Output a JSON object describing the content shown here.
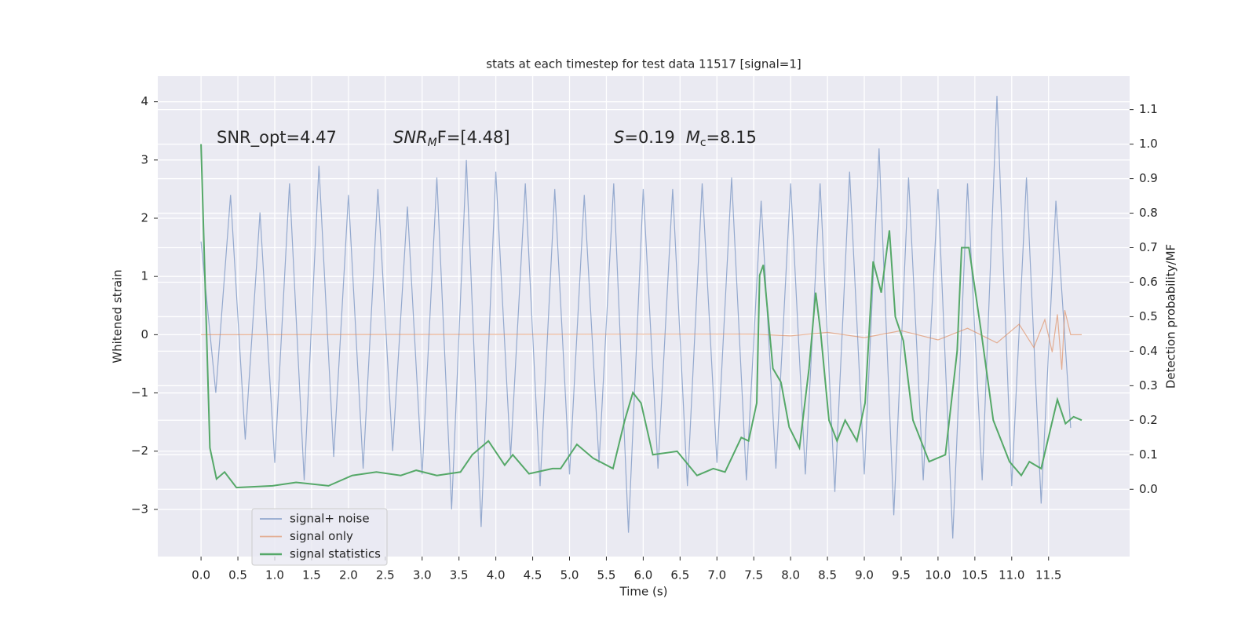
{
  "chart_data": {
    "type": "line",
    "title": "stats at each timestep for test data 11517 [signal=1]",
    "x_label": "Time (s)",
    "y_label": "Whitened strain",
    "y2_label": "Detection probability/MF",
    "annotations": [
      [
        "SNR_opt=4.47"
      ],
      [
        "SNR",
        "M",
        "F=[4.48]"
      ],
      [
        "S",
        "=0.19",
        "M",
        "c",
        "=8.15"
      ]
    ],
    "xlim": [
      -0.587,
      12.6
    ],
    "ylim": [
      -3.81,
      4.44
    ],
    "y2lim": [
      -0.195,
      1.197
    ],
    "xticks": [
      {
        "value": 0,
        "label": "0.0"
      },
      {
        "value": 0.5,
        "label": "0.5"
      },
      {
        "value": 1,
        "label": "1.0"
      },
      {
        "value": 1.5,
        "label": "1.5"
      },
      {
        "value": 2,
        "label": "2.0"
      },
      {
        "value": 2.5,
        "label": "2.5"
      },
      {
        "value": 3,
        "label": "3.0"
      },
      {
        "value": 3.5,
        "label": "3.5"
      },
      {
        "value": 4,
        "label": "4.0"
      },
      {
        "value": 4.5,
        "label": "4.5"
      },
      {
        "value": 5,
        "label": "5.0"
      },
      {
        "value": 5.5,
        "label": "5.5"
      },
      {
        "value": 6,
        "label": "6.0"
      },
      {
        "value": 6.5,
        "label": "6.5"
      },
      {
        "value": 7,
        "label": "7.0"
      },
      {
        "value": 7.5,
        "label": "7.5"
      },
      {
        "value": 8,
        "label": "8.0"
      },
      {
        "value": 8.5,
        "label": "8.5"
      },
      {
        "value": 9,
        "label": "9.0"
      },
      {
        "value": 9.5,
        "label": "9.5"
      },
      {
        "value": 10,
        "label": "10.0"
      },
      {
        "value": 10.5,
        "label": "10.5"
      },
      {
        "value": 11,
        "label": "11.0"
      },
      {
        "value": 11.5,
        "label": "11.5"
      }
    ],
    "yticks": [
      {
        "value": -3,
        "label": "−3"
      },
      {
        "value": -2,
        "label": "−2"
      },
      {
        "value": -1,
        "label": "−1"
      },
      0,
      1,
      2,
      3,
      4
    ],
    "y2ticks": [
      {
        "value": 0,
        "label": "0.0"
      },
      {
        "value": 0.1,
        "label": "0.1"
      },
      {
        "value": 0.2,
        "label": "0.2"
      },
      {
        "value": 0.3,
        "label": "0.3"
      },
      {
        "value": 0.4,
        "label": "0.4"
      },
      {
        "value": 0.5,
        "label": "0.5"
      },
      {
        "value": 0.6,
        "label": "0.6"
      },
      {
        "value": 0.7,
        "label": "0.7"
      },
      {
        "value": 0.8,
        "label": "0.8"
      },
      {
        "value": 0.9,
        "label": "0.9"
      },
      {
        "value": 1,
        "label": "1.0"
      },
      {
        "value": 1.1,
        "label": "1.1"
      }
    ],
    "grid": true,
    "legend": "lower left",
    "series": [
      {
        "name": "signal+ noise",
        "color": "#4c72b0",
        "x": [
          0,
          0.2,
          0.4,
          0.6,
          0.8,
          1,
          1.2,
          1.4,
          1.6,
          1.8,
          2,
          2.2,
          2.4,
          2.6,
          2.8,
          3,
          3.2,
          3.4,
          3.6,
          3.8,
          4,
          4.2,
          4.4,
          4.6,
          4.8,
          5,
          5.2,
          5.4,
          5.6,
          5.8,
          6,
          6.2,
          6.4,
          6.6,
          6.8,
          7,
          7.2,
          7.4,
          7.6,
          7.8,
          8,
          8.2,
          8.4,
          8.6,
          8.8,
          9,
          9.2,
          9.4,
          9.6,
          9.8,
          10,
          10.2,
          10.4,
          10.6,
          10.8,
          11,
          11.2,
          11.4,
          11.6,
          11.8
        ],
        "values": [
          1.6,
          -1.0,
          2.4,
          -1.8,
          2.1,
          -2.2,
          2.6,
          -2.5,
          2.9,
          -2.1,
          2.4,
          -2.3,
          2.5,
          -2.0,
          2.2,
          -2.4,
          2.7,
          -3.0,
          3.0,
          -3.3,
          2.8,
          -2.1,
          2.6,
          -2.6,
          2.5,
          -2.4,
          2.4,
          -2.2,
          2.6,
          -3.4,
          2.5,
          -2.3,
          2.5,
          -2.6,
          2.6,
          -2.2,
          2.7,
          -2.5,
          2.3,
          -2.3,
          2.6,
          -2.4,
          2.6,
          -2.7,
          2.8,
          -2.4,
          3.2,
          -3.1,
          2.7,
          -2.5,
          2.5,
          -3.5,
          2.6,
          -2.5,
          4.1,
          -2.6,
          2.7,
          -2.9,
          2.3,
          -1.6
        ]
      },
      {
        "name": "signal only",
        "color": "#dd8452",
        "x": [
          0,
          7.5,
          8,
          8.5,
          9,
          9.5,
          10,
          10.4,
          10.8,
          11.1,
          11.3,
          11.45,
          11.55,
          11.62,
          11.68,
          11.72,
          11.8,
          11.95
        ],
        "values": [
          0,
          0.01,
          -0.02,
          0.04,
          -0.05,
          0.07,
          -0.09,
          0.11,
          -0.14,
          0.18,
          -0.22,
          0.26,
          -0.3,
          0.35,
          -0.6,
          0.42,
          0,
          0
        ]
      },
      {
        "name": "signal statistics",
        "color": "#55a868",
        "axis": "y2",
        "x": [
          0,
          0.12,
          0.21,
          0.32,
          0.48,
          0.97,
          1.29,
          1.73,
          2.05,
          2.38,
          2.71,
          2.92,
          3.2,
          3.52,
          3.68,
          3.9,
          4.12,
          4.23,
          4.45,
          4.77,
          4.88,
          5.1,
          5.32,
          5.59,
          5.75,
          5.86,
          5.97,
          6.13,
          6.46,
          6.73,
          6.95,
          7.11,
          7.33,
          7.43,
          7.54,
          7.58,
          7.63,
          7.76,
          7.87,
          7.98,
          8.12,
          8.25,
          8.34,
          8.41,
          8.52,
          8.63,
          8.74,
          8.9,
          9.01,
          9.12,
          9.23,
          9.34,
          9.42,
          9.53,
          9.66,
          9.88,
          10.1,
          10.26,
          10.32,
          10.42,
          10.59,
          10.75,
          10.97,
          11.13,
          11.24,
          11.4,
          11.62,
          11.73,
          11.84,
          11.95
        ],
        "values": [
          1.0,
          0.12,
          0.03,
          0.05,
          0.005,
          0.01,
          0.02,
          0.01,
          0.04,
          0.05,
          0.04,
          0.055,
          0.04,
          0.05,
          0.1,
          0.14,
          0.07,
          0.1,
          0.045,
          0.06,
          0.06,
          0.13,
          0.09,
          0.06,
          0.2,
          0.28,
          0.25,
          0.1,
          0.11,
          0.04,
          0.06,
          0.05,
          0.15,
          0.14,
          0.25,
          0.62,
          0.65,
          0.35,
          0.31,
          0.18,
          0.12,
          0.35,
          0.57,
          0.45,
          0.2,
          0.14,
          0.2,
          0.14,
          0.25,
          0.66,
          0.57,
          0.75,
          0.5,
          0.43,
          0.2,
          0.08,
          0.1,
          0.4,
          0.7,
          0.7,
          0.45,
          0.2,
          0.08,
          0.04,
          0.08,
          0.06,
          0.26,
          0.19,
          0.21,
          0.2
        ]
      }
    ]
  }
}
